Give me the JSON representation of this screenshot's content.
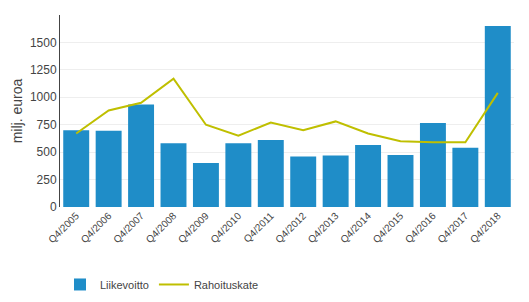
{
  "chart_data": {
    "type": "bar",
    "categories": [
      "Q4/2005",
      "Q4/2006",
      "Q4/2007",
      "Q4/2008",
      "Q4/2009",
      "Q4/2010",
      "Q4/2011",
      "Q4/2012",
      "Q4/2013",
      "Q4/2014",
      "Q4/2015",
      "Q4/2016",
      "Q4/2017",
      "Q4/2018"
    ],
    "series": [
      {
        "name": "Liikevoitto",
        "type": "bar",
        "color": "#1F8DC8",
        "values": [
          700,
          695,
          935,
          580,
          400,
          580,
          610,
          460,
          470,
          565,
          475,
          765,
          540,
          1650
        ]
      },
      {
        "name": "Rahoituskate",
        "type": "line",
        "color": "#BFBF00",
        "values": [
          670,
          880,
          950,
          1170,
          750,
          650,
          770,
          700,
          780,
          670,
          600,
          590,
          590,
          1040
        ]
      }
    ],
    "ylabel": "milj. euroa",
    "ylim": [
      0,
      1750
    ],
    "yticks": [
      0,
      250,
      500,
      750,
      1000,
      1250,
      1500
    ],
    "grid": true,
    "legend": "bottom-left"
  }
}
